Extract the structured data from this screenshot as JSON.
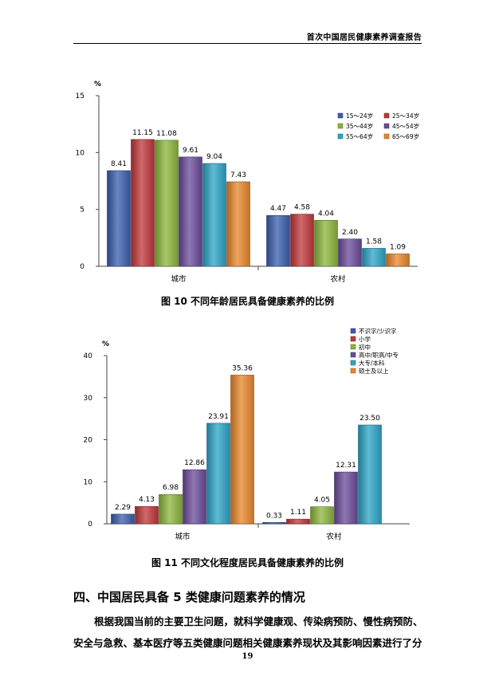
{
  "header": {
    "title": "首次中国居民健康素养调查报告"
  },
  "figures": [
    {
      "caption": "图 10    不同年龄居民具备健康素养的比例",
      "chart_data": {
        "type": "bar",
        "unit": "%",
        "categories": [
          "城市",
          "农村"
        ],
        "ylim": [
          0,
          15
        ],
        "yticks": [
          0,
          5,
          10,
          15
        ],
        "legend_position": "top-right",
        "legend_columns": 2,
        "series": [
          {
            "name": "15～24岁",
            "values": [
              8.41,
              4.47
            ],
            "labels": [
              "8.41",
              "4.47"
            ],
            "color": "#3b5dae"
          },
          {
            "name": "25～34岁",
            "values": [
              11.15,
              4.58
            ],
            "labels": [
              "11.15",
              "4.58"
            ],
            "color": "#c0363a"
          },
          {
            "name": "35～44岁",
            "values": [
              11.08,
              4.04
            ],
            "labels": [
              "11.08",
              "4.04"
            ],
            "color": "#8bb53a"
          },
          {
            "name": "45～54岁",
            "values": [
              9.61,
              2.4
            ],
            "labels": [
              "9.61",
              "2.40"
            ],
            "color": "#6a4a99"
          },
          {
            "name": "55～64岁",
            "values": [
              9.04,
              1.58
            ],
            "labels": [
              "9.04",
              "1.58"
            ],
            "color": "#2ba4c7"
          },
          {
            "name": "65～69岁",
            "values": [
              7.43,
              1.09
            ],
            "labels": [
              "7.43",
              "1.09"
            ],
            "color": "#e8862a"
          }
        ]
      }
    },
    {
      "caption": "图 11    不同文化程度居民具备健康素养的比例",
      "chart_data": {
        "type": "bar",
        "unit": "%",
        "categories": [
          "城市",
          "农村"
        ],
        "ylim": [
          0,
          40
        ],
        "yticks": [
          0,
          10,
          20,
          30,
          40
        ],
        "legend_position": "top-right",
        "legend_columns": 1,
        "series": [
          {
            "name": "不识字/少识字",
            "values": [
              2.29,
              0.33
            ],
            "labels": [
              "2.29",
              "0.33"
            ],
            "color": "#3b5dae"
          },
          {
            "name": "小学",
            "values": [
              4.13,
              1.11
            ],
            "labels": [
              "4.13",
              "1.11"
            ],
            "color": "#c0363a"
          },
          {
            "name": "初中",
            "values": [
              6.98,
              4.05
            ],
            "labels": [
              "6.98",
              "4.05"
            ],
            "color": "#8bb53a"
          },
          {
            "name": "高中/职高/中专",
            "values": [
              12.86,
              12.31
            ],
            "labels": [
              "12.86",
              "12.31"
            ],
            "color": "#6a4a99"
          },
          {
            "name": "大专/本科",
            "values": [
              23.91,
              23.5
            ],
            "labels": [
              "23.91",
              "23.50"
            ],
            "color": "#2ba4c7"
          },
          {
            "name": "硕士及以上",
            "values": [
              35.36,
              null
            ],
            "labels": [
              "35.36",
              ""
            ],
            "color": "#e8862a"
          }
        ]
      }
    }
  ],
  "section": {
    "heading": "四、中国居民具备 5 类健康问题素养的情况"
  },
  "body": {
    "paragraph": "根据我国当前的主要卫生问题，就科学健康观、传染病预防、慢性病预防、安全与急救、基本医疗等五类健康问题相关健康素养现状及其影响因素进行了分"
  },
  "footer": {
    "page_number": "19"
  }
}
